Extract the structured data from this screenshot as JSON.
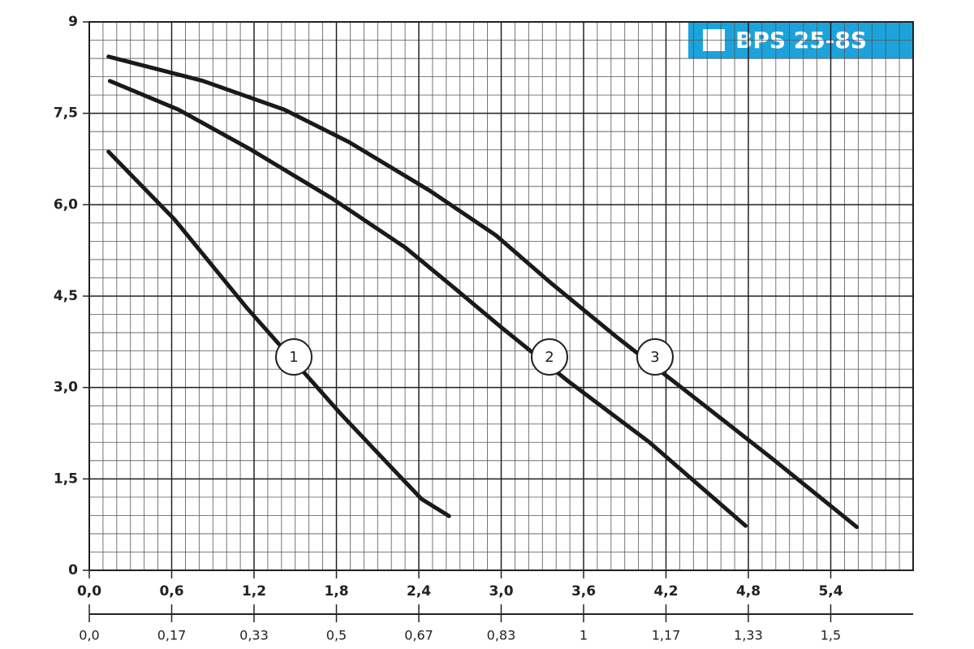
{
  "chart_data": {
    "type": "line",
    "title": "BPS 25-8S",
    "xlim": [
      0,
      6
    ],
    "xticks": [
      {
        "value": 0,
        "label": "0,0"
      },
      {
        "value": 0.6,
        "label": "0,6"
      },
      {
        "value": 1.2,
        "label": "1,2"
      },
      {
        "value": 1.8,
        "label": "1,8"
      },
      {
        "value": 2.4,
        "label": "2,4"
      },
      {
        "value": 3.0,
        "label": "3,0"
      },
      {
        "value": 3.6,
        "label": "3,6"
      },
      {
        "value": 4.2,
        "label": "4,2"
      },
      {
        "value": 4.8,
        "label": "4,8"
      },
      {
        "value": 5.4,
        "label": "5,4"
      }
    ],
    "x2lim": [
      0,
      1.6667
    ],
    "x2ticks": [
      {
        "value": 0,
        "label": "0,0"
      },
      {
        "value": 0.1667,
        "label": "0,17"
      },
      {
        "value": 0.3333,
        "label": "0,33"
      },
      {
        "value": 0.5,
        "label": "0,5"
      },
      {
        "value": 0.6667,
        "label": "0,67"
      },
      {
        "value": 0.8333,
        "label": "0,83"
      },
      1,
      {
        "value": 1.1667,
        "label": "1,17"
      },
      {
        "value": 1.3333,
        "label": "1,33"
      },
      {
        "value": 1.5,
        "label": "1,5"
      }
    ],
    "ylim": [
      0,
      9
    ],
    "yticks": [
      0,
      {
        "value": 1.5,
        "label": "1,5"
      },
      {
        "value": 3.0,
        "label": "3,0"
      },
      {
        "value": 4.5,
        "label": "4,5"
      },
      {
        "value": 6.0,
        "label": "6,0"
      },
      {
        "value": 7.5,
        "label": "7,5"
      },
      9
    ],
    "grid": true,
    "title_color": "#1ca3dc",
    "series": [
      {
        "name": "1",
        "color": "#1a1a1a",
        "x": [
          0.14,
          0.62,
          1.15,
          1.83,
          2.25,
          2.42,
          2.62
        ],
        "values": [
          6.87,
          5.76,
          4.3,
          2.57,
          1.57,
          1.17,
          0.89
        ]
      },
      {
        "name": "2",
        "color": "#1a1a1a",
        "x": [
          0.15,
          0.65,
          1.18,
          1.77,
          2.3,
          2.66,
          3.01,
          3.49,
          4.08,
          4.78
        ],
        "values": [
          8.03,
          7.56,
          6.9,
          6.1,
          5.3,
          4.63,
          3.97,
          3.1,
          2.1,
          0.73
        ]
      },
      {
        "name": "3",
        "color": "#1a1a1a",
        "x": [
          0.14,
          0.83,
          1.42,
          1.89,
          2.48,
          2.96,
          3.37,
          3.84,
          4.37,
          4.97,
          5.59
        ],
        "values": [
          8.43,
          8.03,
          7.56,
          7.03,
          6.23,
          5.5,
          4.7,
          3.83,
          2.9,
          1.84,
          0.71
        ]
      }
    ]
  }
}
